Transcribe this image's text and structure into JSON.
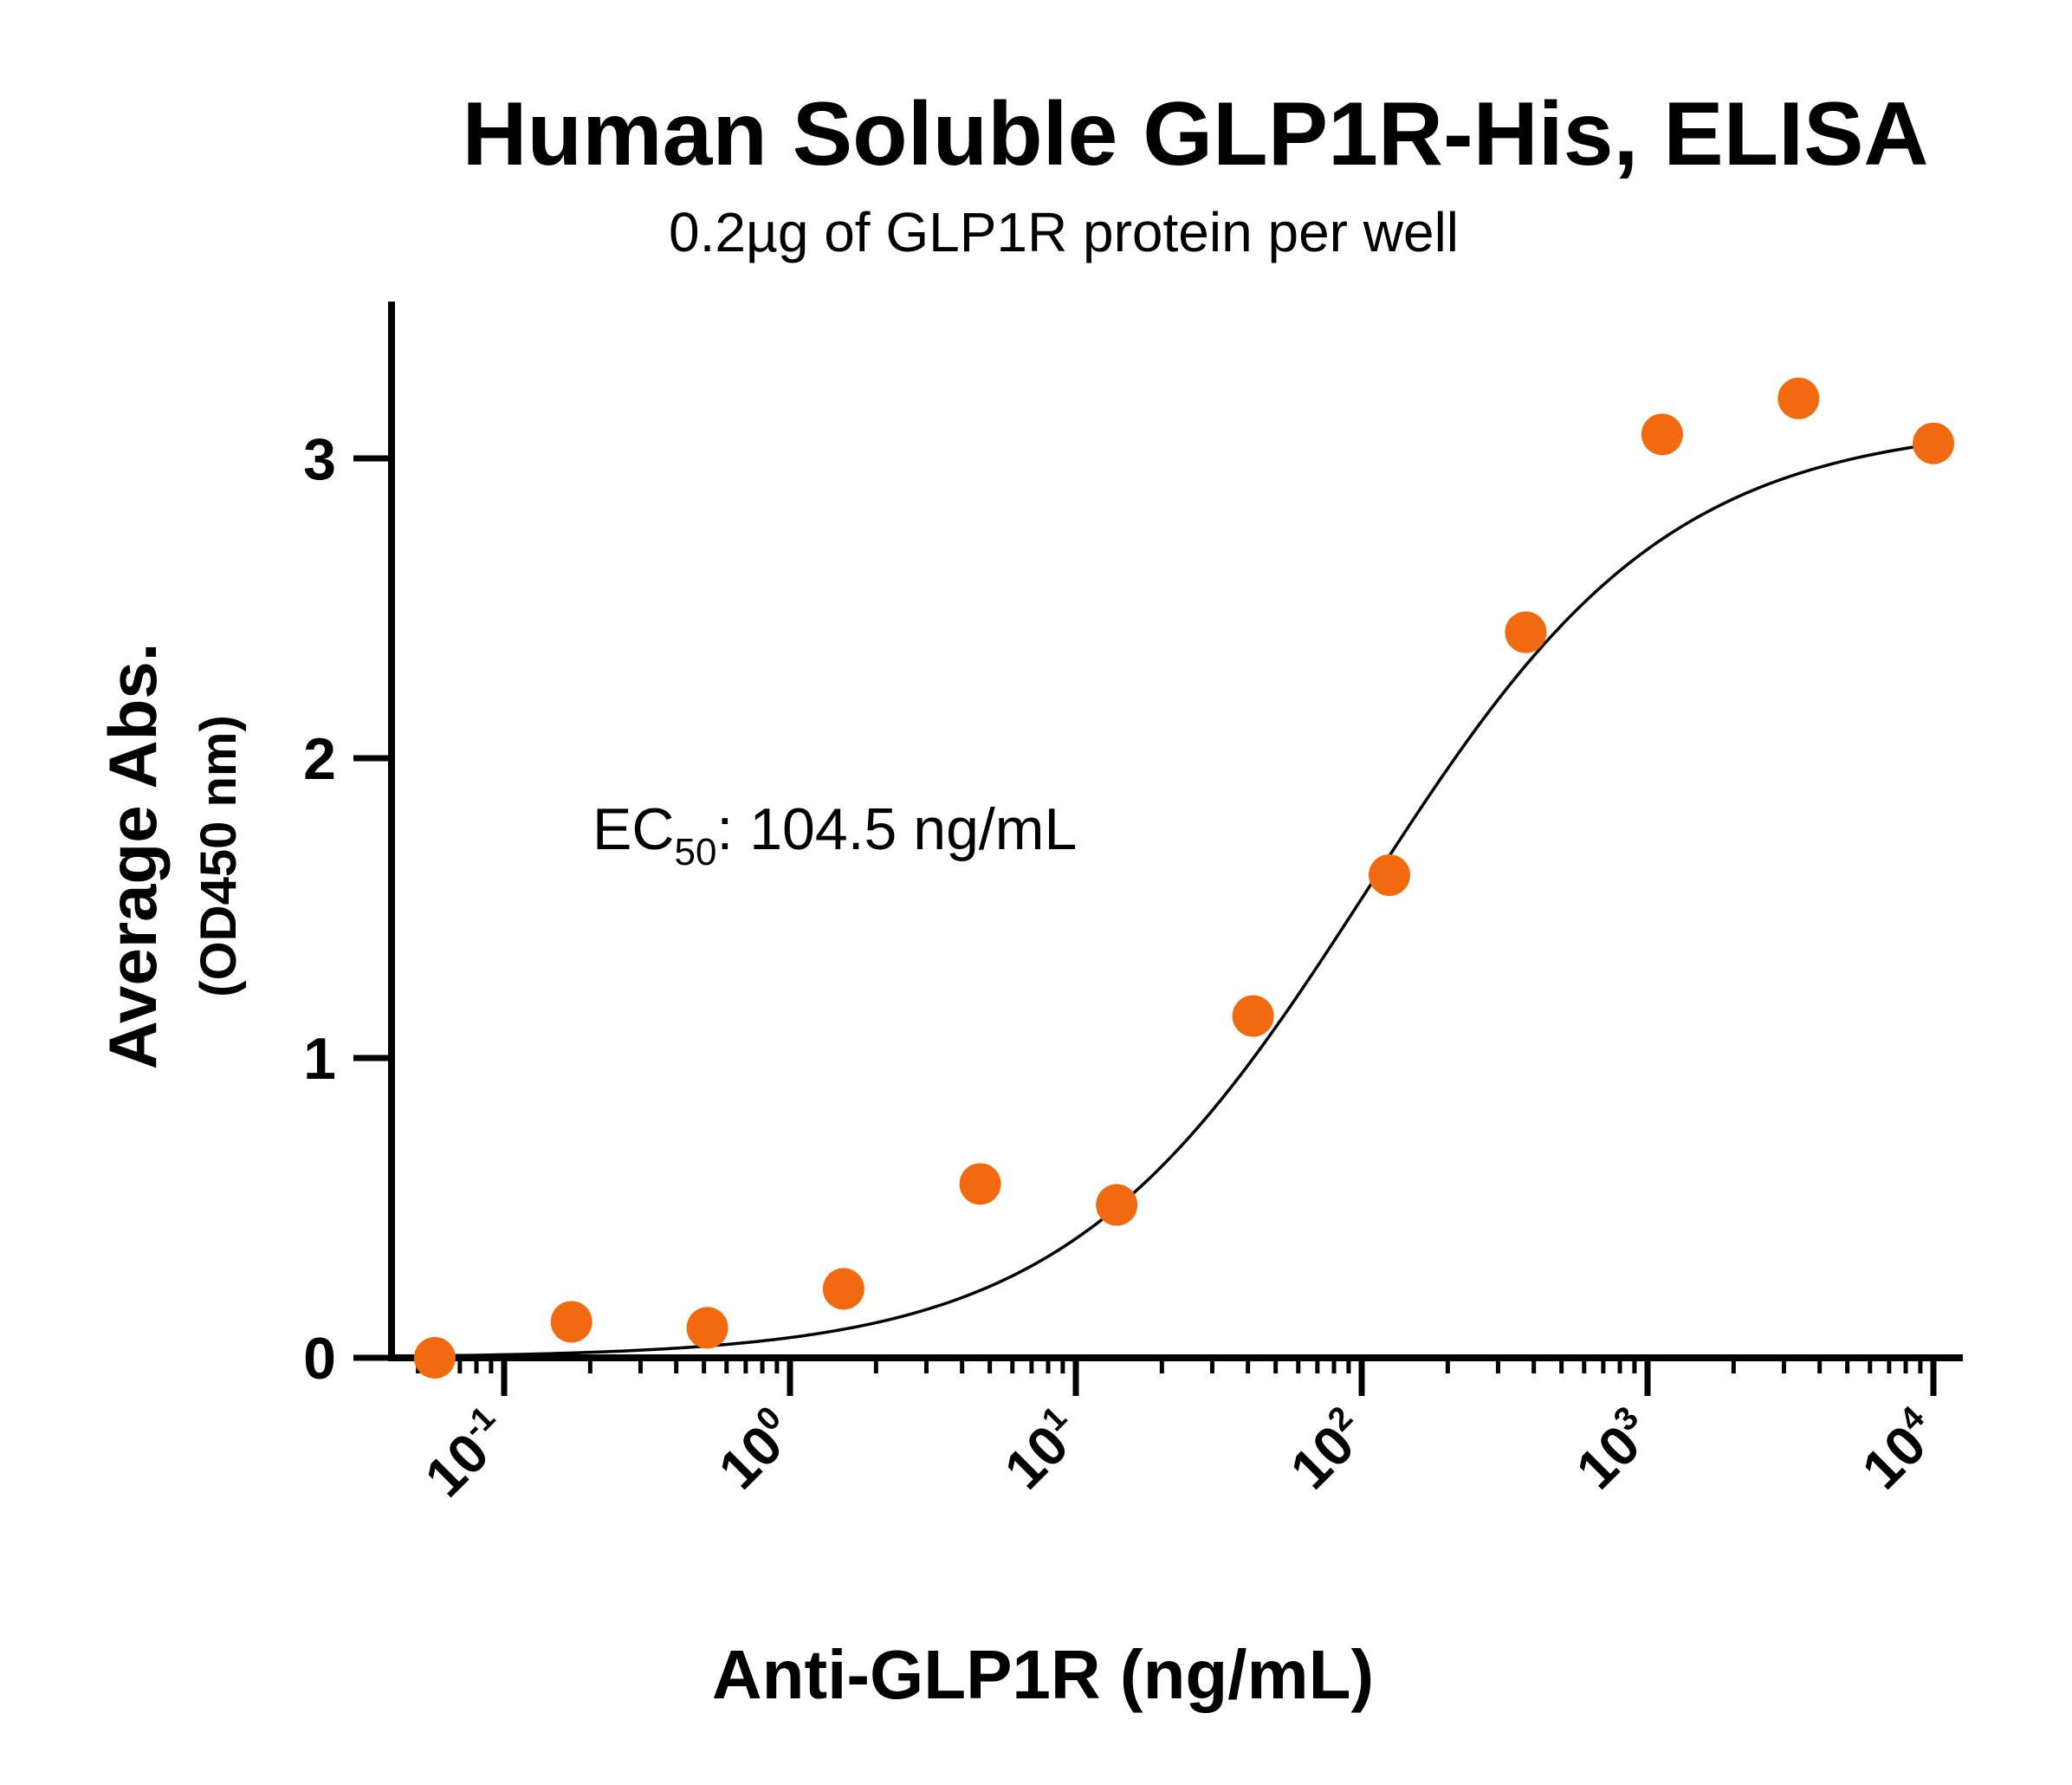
{
  "chart_data": {
    "type": "scatter",
    "title": "Human Soluble GLP1R-His, ELISA",
    "subtitle": "0.2µg of GLP1R protein per well",
    "xlabel": "Anti-GLP1R (ng/mL)",
    "ylabel": "Average Abs.",
    "ylabel_sub": "(OD450 nm)",
    "x_scale": "log",
    "xlim": [
      0.04,
      12000
    ],
    "ylim": [
      0,
      3.5
    ],
    "x_ticks": [
      {
        "value": 0.1,
        "base": "10",
        "exp": "-1"
      },
      {
        "value": 1,
        "base": "10",
        "exp": "0"
      },
      {
        "value": 10,
        "base": "10",
        "exp": "1"
      },
      {
        "value": 100,
        "base": "10",
        "exp": "2"
      },
      {
        "value": 1000,
        "base": "10",
        "exp": "3"
      },
      {
        "value": 10000,
        "base": "10",
        "exp": "4"
      }
    ],
    "y_ticks": [
      {
        "value": 0,
        "label": "0"
      },
      {
        "value": 1,
        "label": "1"
      },
      {
        "value": 2,
        "label": "2"
      },
      {
        "value": 3,
        "label": "3"
      }
    ],
    "annotation": {
      "prefix": "EC",
      "sub": "50",
      "suffix": ": 104.5 ng/mL"
    },
    "grid": false,
    "legend": "none",
    "series": [
      {
        "color": "#F26A0F",
        "points": [
          {
            "x": 0.0572,
            "y": 0.0
          },
          {
            "x": 0.172,
            "y": 0.12
          },
          {
            "x": 0.514,
            "y": 0.1
          },
          {
            "x": 1.54,
            "y": 0.23
          },
          {
            "x": 4.63,
            "y": 0.58
          },
          {
            "x": 13.9,
            "y": 0.51
          },
          {
            "x": 41.7,
            "y": 1.14
          },
          {
            "x": 125,
            "y": 1.61
          },
          {
            "x": 375,
            "y": 2.42
          },
          {
            "x": 1125,
            "y": 3.08
          },
          {
            "x": 3375,
            "y": 3.2
          },
          {
            "x": 10000,
            "y": 3.05
          }
        ]
      }
    ],
    "fit_curve": {
      "model": "4PL",
      "bottom": 0.0,
      "top": 3.12,
      "ec50": 104.5,
      "hill": 0.82,
      "x_range": [
        0.0572,
        10000
      ]
    }
  }
}
